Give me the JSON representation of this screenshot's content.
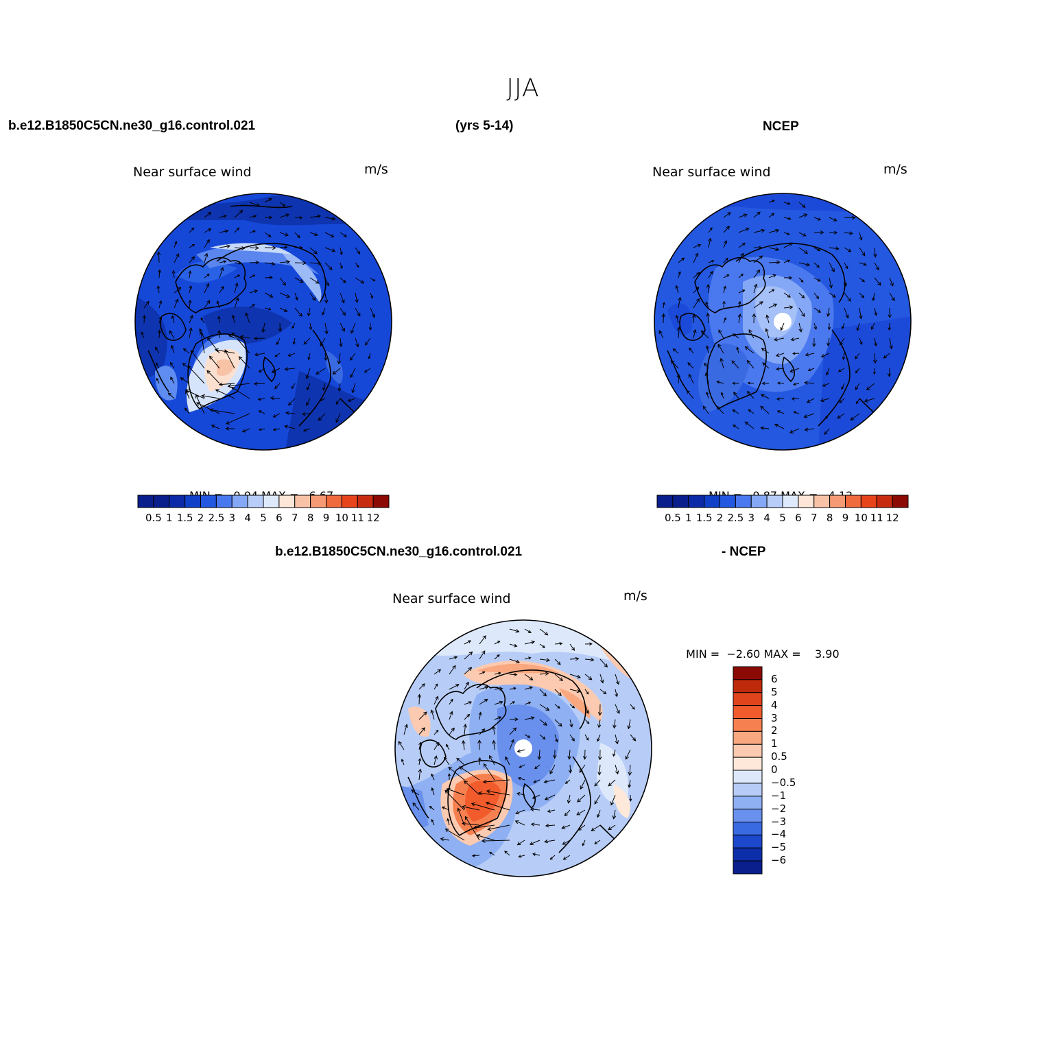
{
  "figure": {
    "title": "JJA",
    "case_name": "b.e12.B1850C5CN.ne30_g16.control.021",
    "years": "(yrs 5-14)",
    "obs_name": "NCEP",
    "diff_case_name": "b.e12.B1850C5CN.ne30_g16.control.021",
    "diff_obs_name": "- NCEP"
  },
  "panels": [
    {
      "id": "model",
      "variable": "Near surface wind",
      "units": "m/s",
      "min_label": "MIN =",
      "min_value": "0.04",
      "max_label": "MAX =",
      "max_value": "6.67",
      "colorbar": {
        "orientation": "horizontal",
        "labels": [
          "0.5",
          "1",
          "1.5",
          "2",
          "2.5",
          "3",
          "4",
          "5",
          "6",
          "7",
          "8",
          "9",
          "10",
          "11",
          "12"
        ],
        "colors": [
          "#0a1e8c",
          "#0c2aa8",
          "#1040c8",
          "#2458e0",
          "#4a78ee",
          "#84a8f6",
          "#b8cdf8",
          "#deeafc",
          "#fde6d8",
          "#f8c2a6",
          "#f59a74",
          "#ef6a3c",
          "#e8441c",
          "#c82c10",
          "#8c0a04"
        ]
      }
    },
    {
      "id": "obs",
      "variable": "Near surface wind",
      "units": "m/s",
      "min_label": "MIN =",
      "min_value": "0.87",
      "max_label": "MAX =",
      "max_value": "4.12",
      "colorbar": {
        "orientation": "horizontal",
        "labels": [
          "0.5",
          "1",
          "1.5",
          "2",
          "2.5",
          "3",
          "4",
          "5",
          "6",
          "7",
          "8",
          "9",
          "10",
          "11",
          "12"
        ],
        "colors": [
          "#0a1e8c",
          "#0c2aa8",
          "#1040c8",
          "#2458e0",
          "#4a78ee",
          "#84a8f6",
          "#b8cdf8",
          "#deeafc",
          "#fde6d8",
          "#f8c2a6",
          "#f59a74",
          "#ef6a3c",
          "#e8441c",
          "#c82c10",
          "#8c0a04"
        ]
      }
    },
    {
      "id": "diff",
      "variable": "Near surface wind",
      "units": "m/s",
      "min_label": "MIN =",
      "min_value": "−2.60",
      "max_label": "MAX =",
      "max_value": "3.90",
      "colorbar": {
        "orientation": "vertical",
        "labels": [
          "6",
          "5",
          "4",
          "3",
          "2",
          "1",
          "0.5",
          "0",
          "−0.5",
          "−1",
          "−2",
          "−3",
          "−4",
          "−5",
          "−6"
        ],
        "colors": [
          "#8c0a04",
          "#c02a0c",
          "#e0441c",
          "#f25c2c",
          "#f78050",
          "#f9a880",
          "#fccab0",
          "#fde8da",
          "#dde9fb",
          "#b7cdf7",
          "#8fb0f3",
          "#6890ec",
          "#3a6ae2",
          "#1c48cc",
          "#0c2ea8",
          "#0a1e8c"
        ]
      }
    }
  ]
}
